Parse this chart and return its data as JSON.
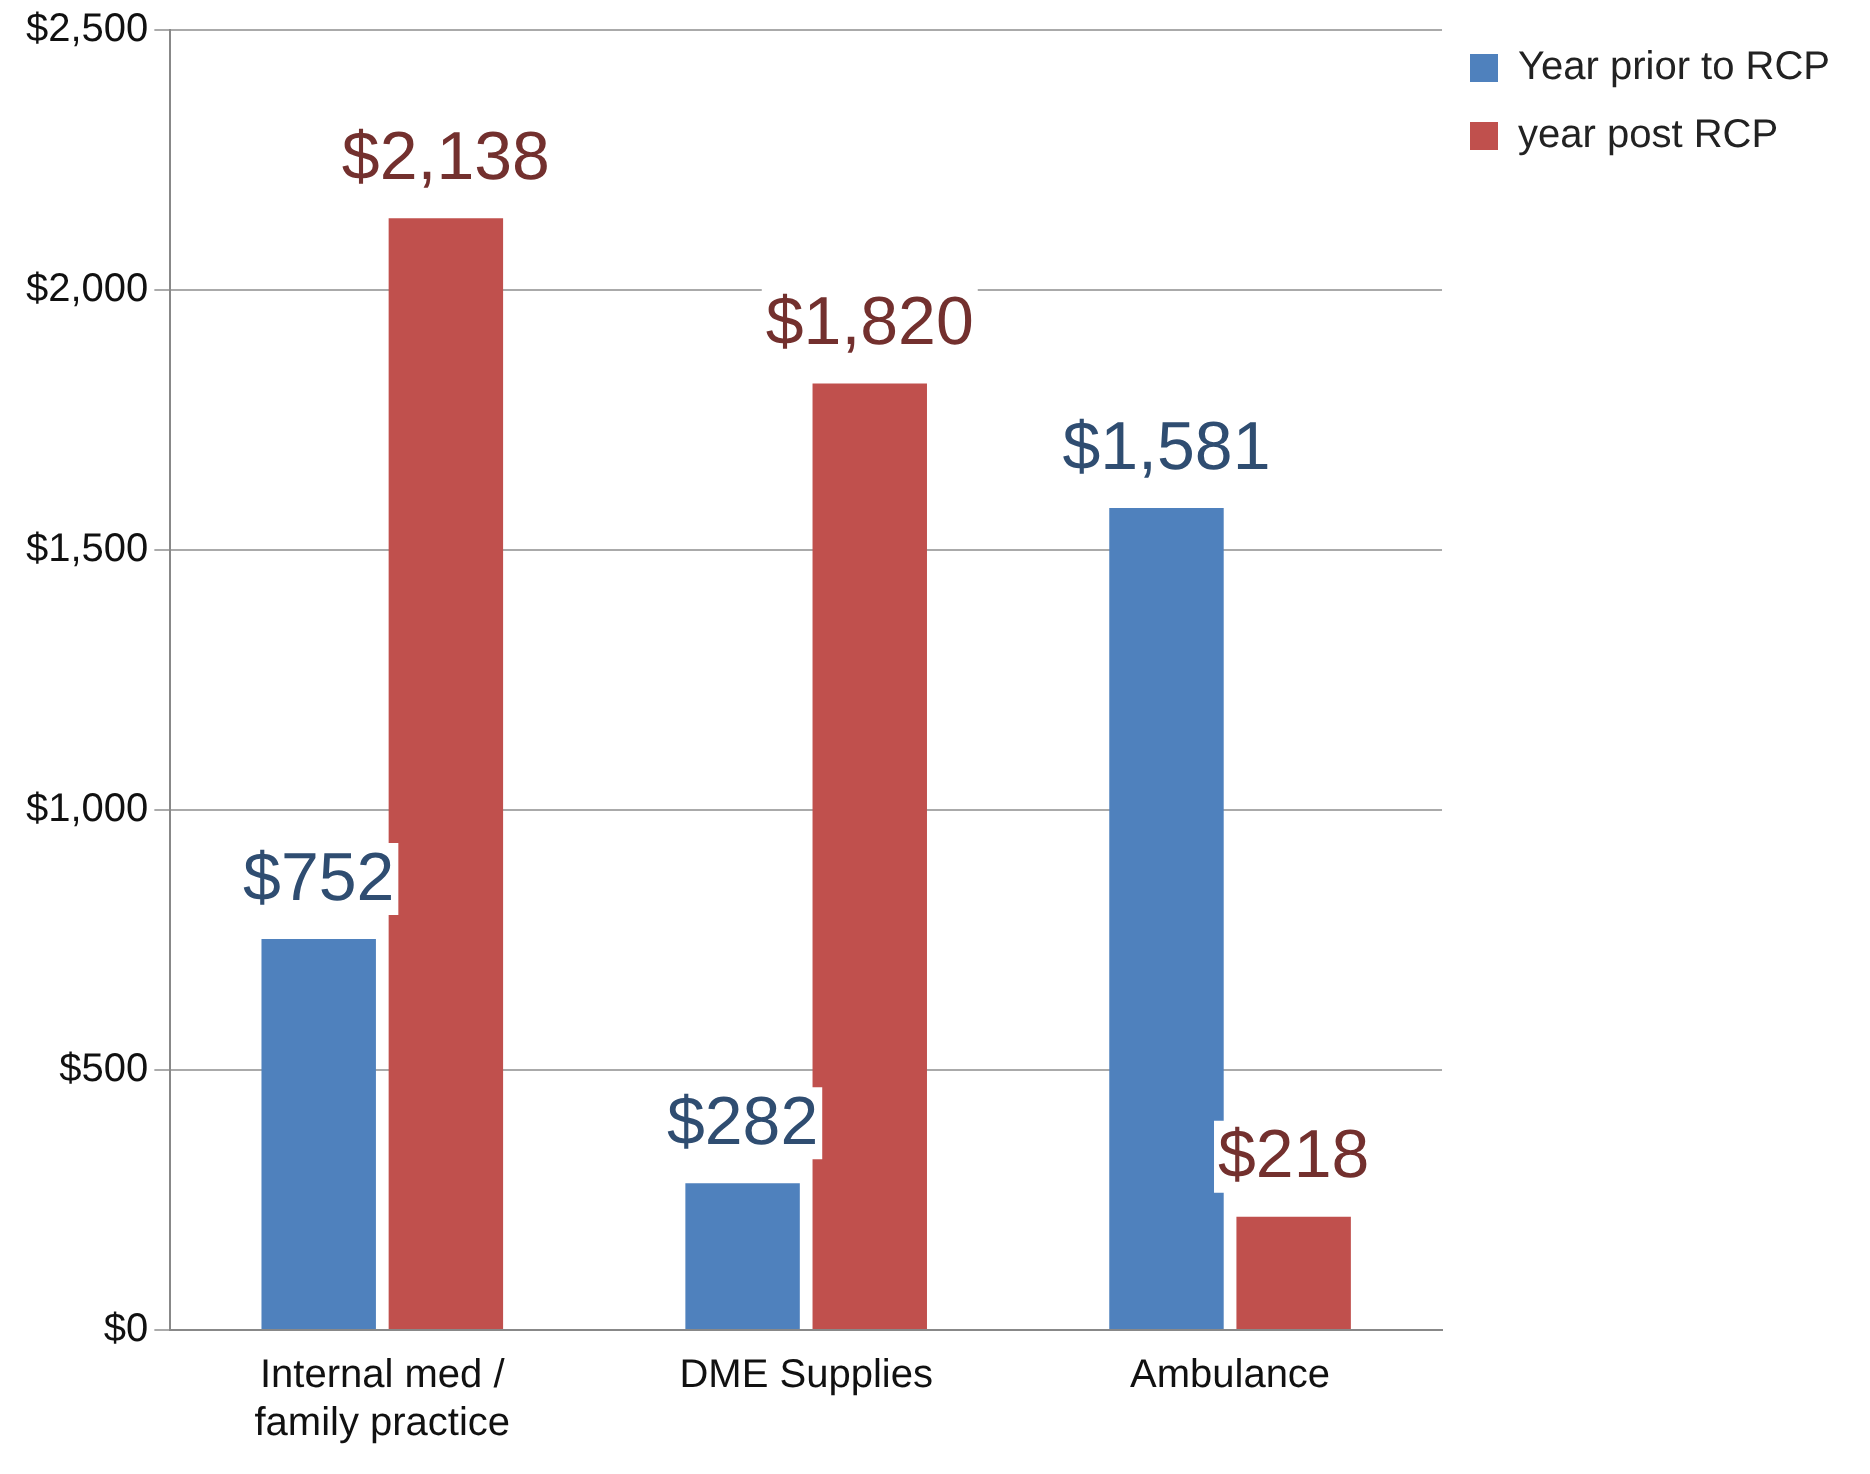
{
  "chart_data": {
    "type": "bar",
    "categories": [
      "Internal med / family practice",
      "DME Supplies",
      "Ambulance"
    ],
    "series": [
      {
        "name": "Year prior to RCP",
        "color": "#4f81bd",
        "values": [
          752,
          282,
          1581
        ],
        "value_labels": [
          "$752",
          "$282",
          "$1,581"
        ]
      },
      {
        "name": "year post RCP",
        "color": "#c0504d",
        "values": [
          2138,
          1820,
          218
        ],
        "value_labels": [
          "$2,138",
          "$1,820",
          "$218"
        ]
      }
    ],
    "ylim": [
      0,
      2500
    ],
    "yticks": [
      {
        "value": 0,
        "label": "$0"
      },
      {
        "value": 500,
        "label": "$500"
      },
      {
        "value": 1000,
        "label": "$1,000"
      },
      {
        "value": 1500,
        "label": "$1,500"
      },
      {
        "value": 2000,
        "label": "$2,000"
      },
      {
        "value": 2500,
        "label": "$2,500"
      }
    ],
    "grid": "y",
    "legend": "right"
  }
}
